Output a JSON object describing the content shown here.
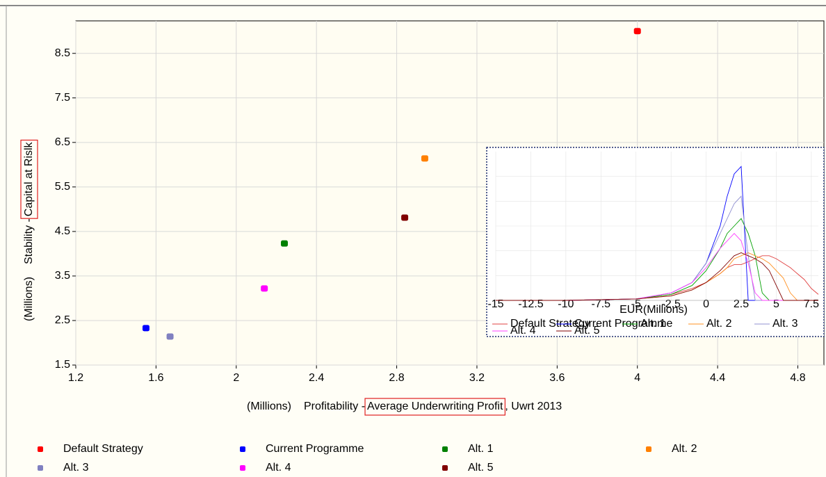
{
  "chart_data": [
    {
      "type": "scatter",
      "x_unit": "(Millions)",
      "x_label_prefix": "Profitability - ",
      "x_label_highlight": "Average Underwriting Profit",
      "x_label_suffix": ", Uwrt 2013",
      "y_unit": "(Millions)",
      "y_label_prefix": "Stability - ",
      "y_label_highlight": "Capital at Rislk",
      "xlim": [
        1.2,
        4.93
      ],
      "xticks": [
        1.2,
        1.6,
        2,
        2.4,
        2.8,
        3.2,
        3.6,
        4,
        4.4,
        4.8
      ],
      "ylim": [
        1.5,
        9.23
      ],
      "yticks": [
        1.5,
        2.5,
        3.5,
        4.5,
        5.5,
        6.5,
        7.5,
        8.5
      ],
      "grid": true,
      "series": [
        {
          "name": "Default Strategy",
          "color": "#ff0000",
          "x": [
            4.0
          ],
          "values": [
            9.0
          ]
        },
        {
          "name": "Current Programme",
          "color": "#0000ff",
          "x": [
            1.55
          ],
          "values": [
            2.33
          ]
        },
        {
          "name": "Alt. 1",
          "color": "#008000",
          "x": [
            2.24
          ],
          "values": [
            4.23
          ]
        },
        {
          "name": "Alt. 2",
          "color": "#ff8000",
          "x": [
            2.94
          ],
          "values": [
            6.14
          ]
        },
        {
          "name": "Alt. 3",
          "color": "#8080c0",
          "x": [
            1.67
          ],
          "values": [
            2.14
          ]
        },
        {
          "name": "Alt. 4",
          "color": "#ff00ff",
          "x": [
            2.14
          ],
          "values": [
            3.22
          ]
        },
        {
          "name": "Alt. 5",
          "color": "#800000",
          "x": [
            2.84
          ],
          "values": [
            4.81
          ]
        }
      ]
    },
    {
      "type": "line",
      "x_label": "EUR(Millions)",
      "xlim": [
        -15,
        8
      ],
      "xticks": [
        -15,
        -12.5,
        -10,
        -7.5,
        -5,
        -2.5,
        0,
        2.5,
        5,
        7.5
      ],
      "ylim": [
        0,
        100
      ],
      "x": [
        -15,
        -10,
        -5,
        -2.5,
        -1,
        0,
        1,
        1.5,
        2,
        2.5,
        3,
        3.5,
        4,
        4.5,
        5,
        5.5,
        6,
        6.5,
        7,
        7.5,
        8
      ],
      "series": [
        {
          "name": "Default Strategy",
          "color": "#e04040",
          "values": [
            0,
            0,
            1,
            4,
            8,
            12,
            18,
            22,
            24,
            24,
            26,
            28,
            30,
            30,
            28,
            25,
            22,
            18,
            14,
            8,
            4
          ]
        },
        {
          "name": "Current Programme",
          "color": "#0000ff",
          "values": [
            0,
            0,
            1,
            5,
            12,
            25,
            50,
            70,
            85,
            90,
            0,
            0,
            0,
            0,
            0,
            0,
            0,
            0,
            0,
            0,
            0
          ]
        },
        {
          "name": "Alt. 1",
          "color": "#00a000",
          "values": [
            0,
            0,
            1,
            4,
            10,
            20,
            35,
            45,
            50,
            55,
            45,
            30,
            5,
            0,
            0,
            0,
            0,
            0,
            0,
            0,
            0
          ]
        },
        {
          "name": "Alt. 2",
          "color": "#ff9020",
          "values": [
            0,
            0,
            1,
            3,
            7,
            12,
            18,
            22,
            28,
            30,
            32,
            30,
            28,
            25,
            20,
            15,
            5,
            0,
            0,
            0,
            0
          ]
        },
        {
          "name": "Alt. 3",
          "color": "#9090d0",
          "values": [
            0,
            0,
            1,
            5,
            12,
            25,
            45,
            55,
            65,
            70,
            30,
            0,
            0,
            0,
            0,
            0,
            0,
            0,
            0,
            0,
            0
          ]
        },
        {
          "name": "Alt. 4",
          "color": "#ff40ff",
          "values": [
            0,
            0,
            1,
            5,
            12,
            22,
            35,
            40,
            45,
            40,
            25,
            5,
            0,
            0,
            0,
            0,
            0,
            0,
            0,
            0,
            0
          ]
        },
        {
          "name": "Alt. 5",
          "color": "#800000",
          "values": [
            0,
            0,
            1,
            3,
            7,
            12,
            20,
            25,
            30,
            32,
            30,
            28,
            25,
            20,
            10,
            0,
            0,
            0,
            0,
            0,
            0
          ]
        }
      ]
    }
  ]
}
